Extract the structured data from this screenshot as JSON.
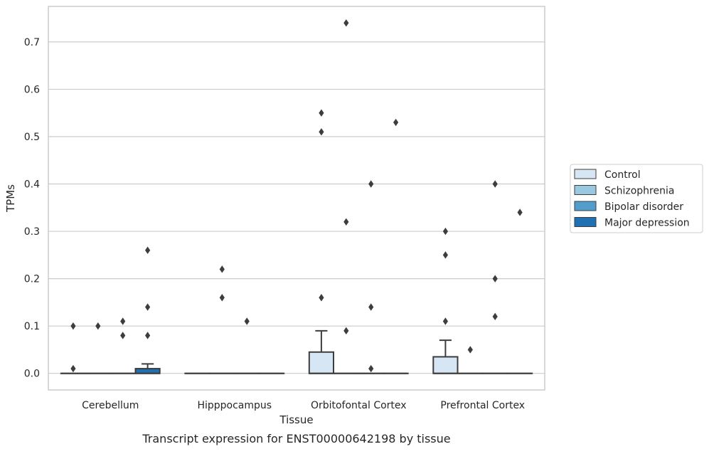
{
  "chart_data": {
    "type": "box",
    "title": "",
    "caption": "Transcript expression for ENST00000642198 by tissue",
    "xlabel": "Tissue",
    "ylabel": "TPMs",
    "ylim": [
      -0.035,
      0.775
    ],
    "yticks": [
      0.0,
      0.1,
      0.2,
      0.3,
      0.4,
      0.5,
      0.6,
      0.7
    ],
    "ytick_labels": [
      "0.0",
      "0.1",
      "0.2",
      "0.3",
      "0.4",
      "0.5",
      "0.6",
      "0.7"
    ],
    "grid": "horizontal",
    "legend_position": "right",
    "categories": [
      "Cerebellum",
      "Hipppocampus",
      "Orbitofontal Cortex",
      "Prefrontal Cortex"
    ],
    "series": [
      {
        "name": "Control",
        "color": "#d6e6f4",
        "boxes": [
          {
            "category": "Cerebellum",
            "q1": 0,
            "median": 0,
            "q3": 0,
            "whisker_low": 0,
            "whisker_high": 0,
            "fliers": [
              0.1,
              0.01
            ]
          },
          {
            "category": "Hipppocampus",
            "q1": 0,
            "median": 0,
            "q3": 0,
            "whisker_low": 0,
            "whisker_high": 0,
            "fliers": []
          },
          {
            "category": "Orbitofontal Cortex",
            "q1": 0,
            "median": 0,
            "q3": 0.045,
            "whisker_low": 0,
            "whisker_high": 0.09,
            "fliers": [
              0.55,
              0.51,
              0.16
            ]
          },
          {
            "category": "Prefrontal Cortex",
            "q1": 0,
            "median": 0,
            "q3": 0.035,
            "whisker_low": 0,
            "whisker_high": 0.07,
            "fliers": [
              0.3,
              0.25,
              0.11
            ]
          }
        ]
      },
      {
        "name": "Schizophrenia",
        "color": "#9ac8e0",
        "boxes": [
          {
            "category": "Cerebellum",
            "q1": 0,
            "median": 0,
            "q3": 0,
            "whisker_low": 0,
            "whisker_high": 0,
            "fliers": [
              0.1
            ]
          },
          {
            "category": "Hipppocampus",
            "q1": 0,
            "median": 0,
            "q3": 0,
            "whisker_low": 0,
            "whisker_high": 0,
            "fliers": [
              0.22,
              0.16
            ]
          },
          {
            "category": "Orbitofontal Cortex",
            "q1": 0,
            "median": 0,
            "q3": 0,
            "whisker_low": 0,
            "whisker_high": 0,
            "fliers": [
              0.74,
              0.32,
              0.09
            ]
          },
          {
            "category": "Prefrontal Cortex",
            "q1": 0,
            "median": 0,
            "q3": 0,
            "whisker_low": 0,
            "whisker_high": 0,
            "fliers": [
              0.05
            ]
          }
        ]
      },
      {
        "name": "Bipolar disorder",
        "color": "#529dcc",
        "boxes": [
          {
            "category": "Cerebellum",
            "q1": 0,
            "median": 0,
            "q3": 0,
            "whisker_low": 0,
            "whisker_high": 0,
            "fliers": [
              0.11,
              0.08
            ]
          },
          {
            "category": "Hipppocampus",
            "q1": 0,
            "median": 0,
            "q3": 0,
            "whisker_low": 0,
            "whisker_high": 0,
            "fliers": [
              0.11
            ]
          },
          {
            "category": "Orbitofontal Cortex",
            "q1": 0,
            "median": 0,
            "q3": 0,
            "whisker_low": 0,
            "whisker_high": 0,
            "fliers": [
              0.4,
              0.14,
              0.01
            ]
          },
          {
            "category": "Prefrontal Cortex",
            "q1": 0,
            "median": 0,
            "q3": 0,
            "whisker_low": 0,
            "whisker_high": 0,
            "fliers": [
              0.4,
              0.2,
              0.12
            ]
          }
        ]
      },
      {
        "name": "Major depression",
        "color": "#2070b4",
        "boxes": [
          {
            "category": "Cerebellum",
            "q1": 0,
            "median": 0,
            "q3": 0.01,
            "whisker_low": 0,
            "whisker_high": 0.02,
            "fliers": [
              0.26,
              0.14,
              0.08
            ]
          },
          {
            "category": "Hipppocampus",
            "q1": 0,
            "median": 0,
            "q3": 0,
            "whisker_low": 0,
            "whisker_high": 0,
            "fliers": []
          },
          {
            "category": "Orbitofontal Cortex",
            "q1": 0,
            "median": 0,
            "q3": 0,
            "whisker_low": 0,
            "whisker_high": 0,
            "fliers": [
              0.53
            ]
          },
          {
            "category": "Prefrontal Cortex",
            "q1": 0,
            "median": 0,
            "q3": 0,
            "whisker_low": 0,
            "whisker_high": 0,
            "fliers": [
              0.34
            ]
          }
        ]
      }
    ]
  }
}
